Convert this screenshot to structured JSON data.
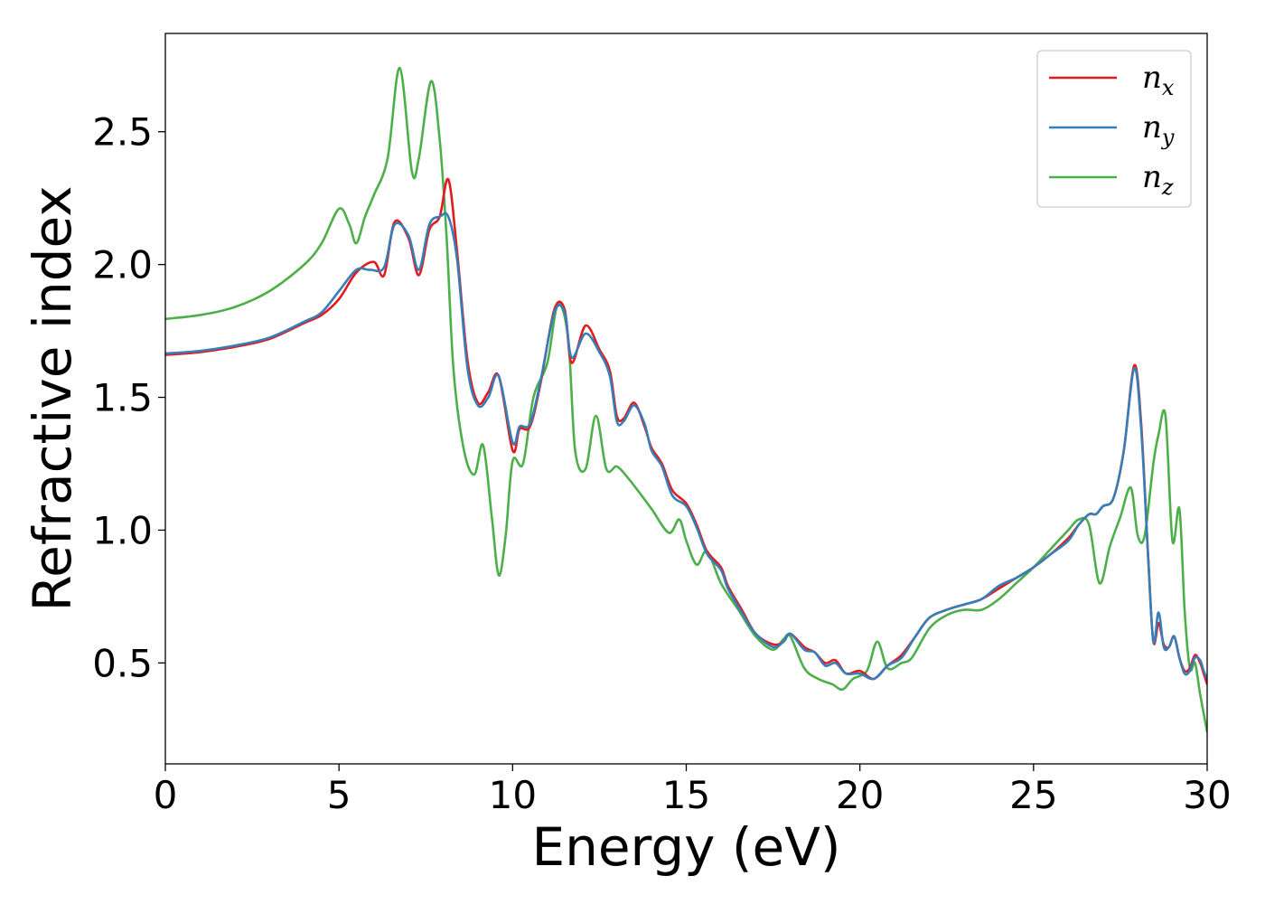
{
  "chart_data": {
    "type": "line",
    "xlabel": "Energy (eV)",
    "ylabel": "Refractive index",
    "xlim": [
      0,
      30
    ],
    "ylim": [
      0.12,
      2.87
    ],
    "xticks": [
      0,
      5,
      10,
      15,
      20,
      25,
      30
    ],
    "xtick_labels": [
      "0",
      "5",
      "10",
      "15",
      "20",
      "25",
      "30"
    ],
    "yticks": [
      0.5,
      1.0,
      1.5,
      2.0,
      2.5
    ],
    "ytick_labels": [
      "0.5",
      "1.0",
      "1.5",
      "2.0",
      "2.5"
    ],
    "grid": false,
    "legend_position": "top-right",
    "series": [
      {
        "name": "n",
        "subscript": "x",
        "color": "#e41a1c",
        "x": [
          0,
          1,
          2,
          3,
          4,
          4.5,
          5,
          5.5,
          6,
          6.3,
          6.6,
          7,
          7.3,
          7.6,
          7.9,
          8.15,
          8.4,
          8.7,
          9,
          9.3,
          9.6,
          10,
          10.2,
          10.5,
          10.8,
          11.2,
          11.5,
          11.7,
          12.1,
          12.5,
          12.8,
          13,
          13.2,
          13.5,
          13.8,
          14,
          14.3,
          14.6,
          15,
          15.3,
          15.6,
          16,
          16.2,
          16.6,
          17,
          17.5,
          17.8,
          18,
          18.4,
          18.7,
          19,
          19.3,
          19.6,
          20,
          20.4,
          20.8,
          21.2,
          21.6,
          22,
          22.5,
          23,
          23.5,
          24,
          24.5,
          25,
          25.5,
          26,
          26.3,
          26.6,
          26.8,
          27,
          27.3,
          27.6,
          27.9,
          28.1,
          28.3,
          28.45,
          28.6,
          28.75,
          28.9,
          29.05,
          29.2,
          29.35,
          29.5,
          29.65,
          29.8,
          29.9,
          30
        ],
        "y": [
          1.66,
          1.67,
          1.69,
          1.72,
          1.78,
          1.81,
          1.87,
          1.97,
          2.01,
          1.96,
          2.16,
          2.1,
          1.96,
          2.13,
          2.18,
          2.32,
          2.05,
          1.64,
          1.48,
          1.52,
          1.58,
          1.3,
          1.38,
          1.39,
          1.55,
          1.83,
          1.83,
          1.63,
          1.77,
          1.68,
          1.6,
          1.43,
          1.42,
          1.48,
          1.39,
          1.31,
          1.25,
          1.15,
          1.1,
          1.02,
          0.92,
          0.86,
          0.79,
          0.7,
          0.61,
          0.57,
          0.58,
          0.61,
          0.56,
          0.54,
          0.5,
          0.51,
          0.46,
          0.47,
          0.44,
          0.49,
          0.53,
          0.6,
          0.67,
          0.7,
          0.72,
          0.74,
          0.78,
          0.82,
          0.86,
          0.91,
          0.97,
          1.02,
          1.06,
          1.06,
          1.09,
          1.12,
          1.3,
          1.62,
          1.4,
          0.9,
          0.58,
          0.65,
          0.57,
          0.56,
          0.6,
          0.52,
          0.47,
          0.48,
          0.53,
          0.5,
          0.46,
          0.42
        ]
      },
      {
        "name": "n",
        "subscript": "y",
        "color": "#377eb8",
        "x": [
          0,
          1,
          2,
          3,
          4,
          4.5,
          5,
          5.5,
          5.9,
          6.3,
          6.6,
          7,
          7.3,
          7.6,
          7.9,
          8.15,
          8.4,
          8.7,
          9,
          9.3,
          9.6,
          10,
          10.2,
          10.5,
          10.8,
          11.2,
          11.5,
          11.7,
          12.1,
          12.5,
          12.8,
          13,
          13.2,
          13.5,
          13.8,
          14,
          14.3,
          14.6,
          15,
          15.3,
          15.6,
          16,
          16.2,
          16.6,
          17,
          17.5,
          17.8,
          18,
          18.4,
          18.7,
          19,
          19.3,
          19.6,
          20,
          20.4,
          20.8,
          21.2,
          21.6,
          22,
          22.5,
          23,
          23.5,
          24,
          24.5,
          25,
          25.5,
          26,
          26.3,
          26.6,
          26.8,
          27,
          27.3,
          27.6,
          27.9,
          28.1,
          28.3,
          28.45,
          28.6,
          28.75,
          28.9,
          29.05,
          29.2,
          29.35,
          29.5,
          29.65,
          29.8,
          29.9,
          30
        ],
        "y": [
          1.665,
          1.675,
          1.695,
          1.725,
          1.785,
          1.82,
          1.9,
          1.98,
          1.98,
          1.99,
          2.15,
          2.11,
          1.98,
          2.15,
          2.18,
          2.18,
          2.02,
          1.61,
          1.47,
          1.5,
          1.58,
          1.33,
          1.39,
          1.4,
          1.56,
          1.82,
          1.82,
          1.65,
          1.74,
          1.67,
          1.58,
          1.41,
          1.41,
          1.47,
          1.4,
          1.3,
          1.24,
          1.13,
          1.09,
          1.01,
          0.91,
          0.85,
          0.78,
          0.69,
          0.61,
          0.56,
          0.58,
          0.61,
          0.55,
          0.54,
          0.49,
          0.5,
          0.46,
          0.46,
          0.44,
          0.49,
          0.52,
          0.6,
          0.67,
          0.7,
          0.72,
          0.74,
          0.79,
          0.82,
          0.86,
          0.91,
          0.96,
          1.02,
          1.06,
          1.06,
          1.09,
          1.12,
          1.3,
          1.61,
          1.38,
          0.9,
          0.58,
          0.69,
          0.56,
          0.56,
          0.6,
          0.52,
          0.46,
          0.47,
          0.52,
          0.51,
          0.47,
          0.44
        ]
      },
      {
        "name": "n",
        "subscript": "z",
        "color": "#4daf4a",
        "x": [
          0,
          1,
          2,
          3,
          4,
          4.5,
          5,
          5.3,
          5.5,
          5.75,
          6,
          6.4,
          6.75,
          7.1,
          7.3,
          7.65,
          7.9,
          8.1,
          8.3,
          8.6,
          8.9,
          9.15,
          9.4,
          9.6,
          9.8,
          10,
          10.3,
          10.6,
          11,
          11.3,
          11.6,
          11.8,
          12.1,
          12.4,
          12.7,
          13,
          13.3,
          13.6,
          14,
          14.5,
          14.8,
          15,
          15.3,
          15.6,
          16,
          16.5,
          17,
          17.5,
          17.8,
          18,
          18.4,
          18.8,
          19.2,
          19.5,
          19.8,
          20.2,
          20.5,
          20.8,
          21.2,
          21.5,
          22,
          22.5,
          23,
          23.5,
          24,
          24.5,
          25,
          25.5,
          26,
          26.3,
          26.6,
          26.9,
          27.2,
          27.5,
          27.8,
          28,
          28.2,
          28.45,
          28.6,
          28.8,
          29,
          29.2,
          29.35,
          29.5,
          29.65,
          29.8,
          30
        ],
        "y": [
          1.795,
          1.81,
          1.84,
          1.9,
          2.0,
          2.08,
          2.21,
          2.15,
          2.08,
          2.18,
          2.26,
          2.4,
          2.74,
          2.35,
          2.4,
          2.69,
          2.47,
          2.1,
          1.6,
          1.3,
          1.21,
          1.32,
          1.05,
          0.83,
          0.98,
          1.26,
          1.25,
          1.5,
          1.63,
          1.85,
          1.72,
          1.3,
          1.23,
          1.43,
          1.23,
          1.24,
          1.2,
          1.15,
          1.08,
          0.99,
          1.04,
          0.96,
          0.87,
          0.92,
          0.8,
          0.7,
          0.6,
          0.55,
          0.59,
          0.6,
          0.48,
          0.44,
          0.42,
          0.4,
          0.44,
          0.47,
          0.58,
          0.48,
          0.5,
          0.52,
          0.63,
          0.68,
          0.7,
          0.7,
          0.74,
          0.8,
          0.86,
          0.93,
          1.0,
          1.04,
          1.02,
          0.8,
          0.94,
          1.05,
          1.16,
          0.98,
          0.98,
          1.25,
          1.36,
          1.43,
          0.96,
          1.08,
          0.7,
          0.48,
          0.5,
          0.38,
          0.24
        ]
      }
    ]
  }
}
